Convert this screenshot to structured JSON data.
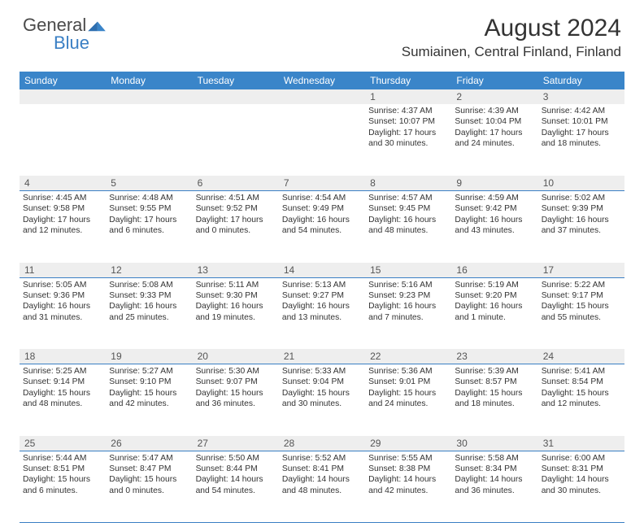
{
  "brand": {
    "word1": "General",
    "word2": "Blue"
  },
  "title": "August 2024",
  "location": "Sumiainen, Central Finland, Finland",
  "colors": {
    "header_bg": "#3a85c9",
    "header_text": "#ffffff",
    "daynum_bg": "#eeeeee",
    "rule": "#3a7fc4",
    "body_text": "#333333"
  },
  "day_names": [
    "Sunday",
    "Monday",
    "Tuesday",
    "Wednesday",
    "Thursday",
    "Friday",
    "Saturday"
  ],
  "weeks": [
    {
      "nums": [
        "",
        "",
        "",
        "",
        "1",
        "2",
        "3"
      ],
      "cells": [
        {
          "sunrise": "",
          "sunset": "",
          "daylight1": "",
          "daylight2": ""
        },
        {
          "sunrise": "",
          "sunset": "",
          "daylight1": "",
          "daylight2": ""
        },
        {
          "sunrise": "",
          "sunset": "",
          "daylight1": "",
          "daylight2": ""
        },
        {
          "sunrise": "",
          "sunset": "",
          "daylight1": "",
          "daylight2": ""
        },
        {
          "sunrise": "Sunrise: 4:37 AM",
          "sunset": "Sunset: 10:07 PM",
          "daylight1": "Daylight: 17 hours",
          "daylight2": "and 30 minutes."
        },
        {
          "sunrise": "Sunrise: 4:39 AM",
          "sunset": "Sunset: 10:04 PM",
          "daylight1": "Daylight: 17 hours",
          "daylight2": "and 24 minutes."
        },
        {
          "sunrise": "Sunrise: 4:42 AM",
          "sunset": "Sunset: 10:01 PM",
          "daylight1": "Daylight: 17 hours",
          "daylight2": "and 18 minutes."
        }
      ]
    },
    {
      "nums": [
        "4",
        "5",
        "6",
        "7",
        "8",
        "9",
        "10"
      ],
      "cells": [
        {
          "sunrise": "Sunrise: 4:45 AM",
          "sunset": "Sunset: 9:58 PM",
          "daylight1": "Daylight: 17 hours",
          "daylight2": "and 12 minutes."
        },
        {
          "sunrise": "Sunrise: 4:48 AM",
          "sunset": "Sunset: 9:55 PM",
          "daylight1": "Daylight: 17 hours",
          "daylight2": "and 6 minutes."
        },
        {
          "sunrise": "Sunrise: 4:51 AM",
          "sunset": "Sunset: 9:52 PM",
          "daylight1": "Daylight: 17 hours",
          "daylight2": "and 0 minutes."
        },
        {
          "sunrise": "Sunrise: 4:54 AM",
          "sunset": "Sunset: 9:49 PM",
          "daylight1": "Daylight: 16 hours",
          "daylight2": "and 54 minutes."
        },
        {
          "sunrise": "Sunrise: 4:57 AM",
          "sunset": "Sunset: 9:45 PM",
          "daylight1": "Daylight: 16 hours",
          "daylight2": "and 48 minutes."
        },
        {
          "sunrise": "Sunrise: 4:59 AM",
          "sunset": "Sunset: 9:42 PM",
          "daylight1": "Daylight: 16 hours",
          "daylight2": "and 43 minutes."
        },
        {
          "sunrise": "Sunrise: 5:02 AM",
          "sunset": "Sunset: 9:39 PM",
          "daylight1": "Daylight: 16 hours",
          "daylight2": "and 37 minutes."
        }
      ]
    },
    {
      "nums": [
        "11",
        "12",
        "13",
        "14",
        "15",
        "16",
        "17"
      ],
      "cells": [
        {
          "sunrise": "Sunrise: 5:05 AM",
          "sunset": "Sunset: 9:36 PM",
          "daylight1": "Daylight: 16 hours",
          "daylight2": "and 31 minutes."
        },
        {
          "sunrise": "Sunrise: 5:08 AM",
          "sunset": "Sunset: 9:33 PM",
          "daylight1": "Daylight: 16 hours",
          "daylight2": "and 25 minutes."
        },
        {
          "sunrise": "Sunrise: 5:11 AM",
          "sunset": "Sunset: 9:30 PM",
          "daylight1": "Daylight: 16 hours",
          "daylight2": "and 19 minutes."
        },
        {
          "sunrise": "Sunrise: 5:13 AM",
          "sunset": "Sunset: 9:27 PM",
          "daylight1": "Daylight: 16 hours",
          "daylight2": "and 13 minutes."
        },
        {
          "sunrise": "Sunrise: 5:16 AM",
          "sunset": "Sunset: 9:23 PM",
          "daylight1": "Daylight: 16 hours",
          "daylight2": "and 7 minutes."
        },
        {
          "sunrise": "Sunrise: 5:19 AM",
          "sunset": "Sunset: 9:20 PM",
          "daylight1": "Daylight: 16 hours",
          "daylight2": "and 1 minute."
        },
        {
          "sunrise": "Sunrise: 5:22 AM",
          "sunset": "Sunset: 9:17 PM",
          "daylight1": "Daylight: 15 hours",
          "daylight2": "and 55 minutes."
        }
      ]
    },
    {
      "nums": [
        "18",
        "19",
        "20",
        "21",
        "22",
        "23",
        "24"
      ],
      "cells": [
        {
          "sunrise": "Sunrise: 5:25 AM",
          "sunset": "Sunset: 9:14 PM",
          "daylight1": "Daylight: 15 hours",
          "daylight2": "and 48 minutes."
        },
        {
          "sunrise": "Sunrise: 5:27 AM",
          "sunset": "Sunset: 9:10 PM",
          "daylight1": "Daylight: 15 hours",
          "daylight2": "and 42 minutes."
        },
        {
          "sunrise": "Sunrise: 5:30 AM",
          "sunset": "Sunset: 9:07 PM",
          "daylight1": "Daylight: 15 hours",
          "daylight2": "and 36 minutes."
        },
        {
          "sunrise": "Sunrise: 5:33 AM",
          "sunset": "Sunset: 9:04 PM",
          "daylight1": "Daylight: 15 hours",
          "daylight2": "and 30 minutes."
        },
        {
          "sunrise": "Sunrise: 5:36 AM",
          "sunset": "Sunset: 9:01 PM",
          "daylight1": "Daylight: 15 hours",
          "daylight2": "and 24 minutes."
        },
        {
          "sunrise": "Sunrise: 5:39 AM",
          "sunset": "Sunset: 8:57 PM",
          "daylight1": "Daylight: 15 hours",
          "daylight2": "and 18 minutes."
        },
        {
          "sunrise": "Sunrise: 5:41 AM",
          "sunset": "Sunset: 8:54 PM",
          "daylight1": "Daylight: 15 hours",
          "daylight2": "and 12 minutes."
        }
      ]
    },
    {
      "nums": [
        "25",
        "26",
        "27",
        "28",
        "29",
        "30",
        "31"
      ],
      "cells": [
        {
          "sunrise": "Sunrise: 5:44 AM",
          "sunset": "Sunset: 8:51 PM",
          "daylight1": "Daylight: 15 hours",
          "daylight2": "and 6 minutes."
        },
        {
          "sunrise": "Sunrise: 5:47 AM",
          "sunset": "Sunset: 8:47 PM",
          "daylight1": "Daylight: 15 hours",
          "daylight2": "and 0 minutes."
        },
        {
          "sunrise": "Sunrise: 5:50 AM",
          "sunset": "Sunset: 8:44 PM",
          "daylight1": "Daylight: 14 hours",
          "daylight2": "and 54 minutes."
        },
        {
          "sunrise": "Sunrise: 5:52 AM",
          "sunset": "Sunset: 8:41 PM",
          "daylight1": "Daylight: 14 hours",
          "daylight2": "and 48 minutes."
        },
        {
          "sunrise": "Sunrise: 5:55 AM",
          "sunset": "Sunset: 8:38 PM",
          "daylight1": "Daylight: 14 hours",
          "daylight2": "and 42 minutes."
        },
        {
          "sunrise": "Sunrise: 5:58 AM",
          "sunset": "Sunset: 8:34 PM",
          "daylight1": "Daylight: 14 hours",
          "daylight2": "and 36 minutes."
        },
        {
          "sunrise": "Sunrise: 6:00 AM",
          "sunset": "Sunset: 8:31 PM",
          "daylight1": "Daylight: 14 hours",
          "daylight2": "and 30 minutes."
        }
      ]
    }
  ]
}
